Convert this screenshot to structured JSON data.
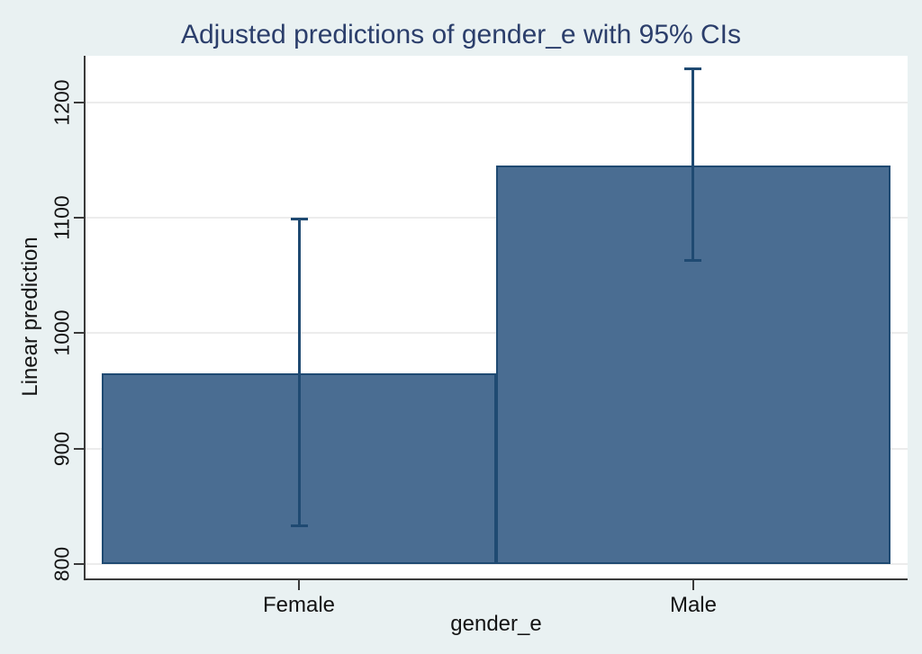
{
  "chart_data": {
    "type": "bar",
    "title": "Adjusted predictions of gender_e with 95% CIs",
    "xlabel": "gender_e",
    "ylabel": "Linear prediction",
    "categories": [
      "Female",
      "Male"
    ],
    "values": [
      965,
      1145
    ],
    "ci_low": [
      832,
      1062
    ],
    "ci_high": [
      1100,
      1230
    ],
    "yticks": [
      800,
      900,
      1000,
      1100,
      1200
    ],
    "ylim": [
      787.5,
      1240.5
    ],
    "bar_base": 800,
    "grid": true,
    "legend_position": "none",
    "colors": {
      "background": "#e9f1f2",
      "plot_background": "#ffffff",
      "gridline": "#ececec",
      "axis": "#3a3a3a",
      "bar_fill": "#4a6d92",
      "bar_outline": "#1f4a72",
      "error_bar": "#1f4a72",
      "title_text": "#2b3e6b",
      "tick_text": "#141414"
    }
  }
}
